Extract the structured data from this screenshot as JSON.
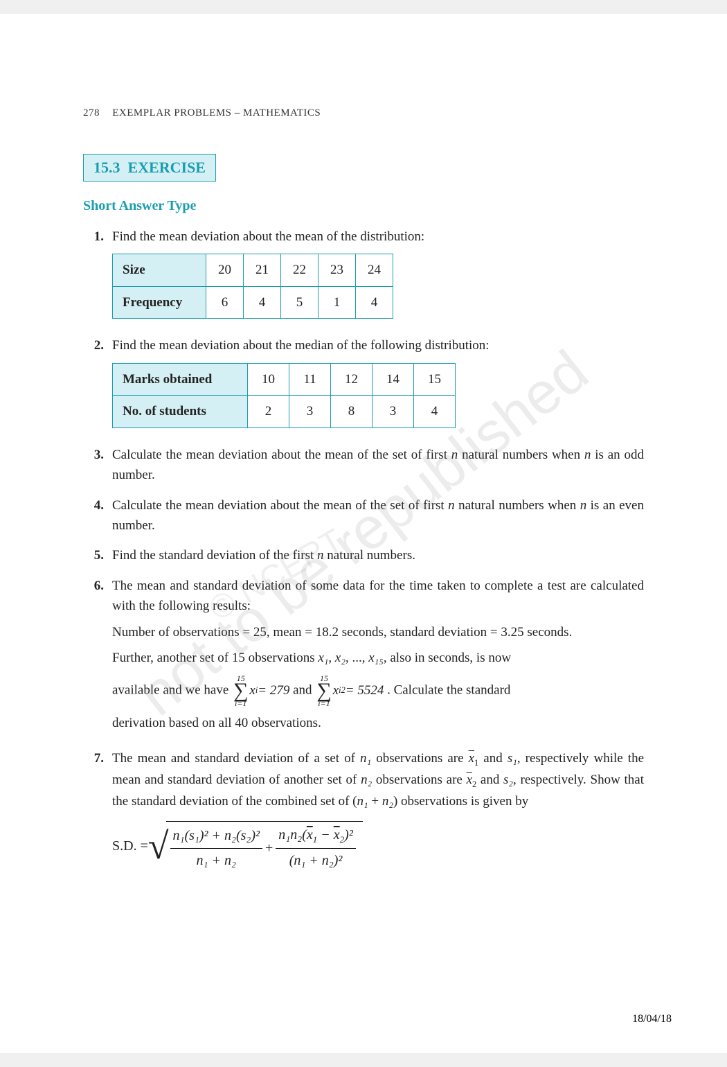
{
  "header": {
    "page_number": "278",
    "title": "EXEMPLAR PROBLEMS – MATHEMATICS"
  },
  "section": {
    "number": "15.3",
    "label": "EXERCISE"
  },
  "subtitle": "Short Answer Type",
  "watermarks": {
    "main": "not to be republished",
    "secondary": "© NCERT"
  },
  "q1": {
    "num": "1.",
    "text": "Find the mean deviation about the mean of the distribution:",
    "table": {
      "rows": [
        {
          "label": "Size",
          "vals": [
            "20",
            "21",
            "22",
            "23",
            "24"
          ]
        },
        {
          "label": "Frequency",
          "vals": [
            "6",
            "4",
            "5",
            "1",
            "4"
          ]
        }
      ]
    }
  },
  "q2": {
    "num": "2.",
    "text": "Find the mean deviation about the median of the following distribution:",
    "table": {
      "rows": [
        {
          "label": "Marks obtained",
          "vals": [
            "10",
            "11",
            "12",
            "14",
            "15"
          ]
        },
        {
          "label": "No. of students",
          "vals": [
            "2",
            "3",
            "8",
            "3",
            "4"
          ]
        }
      ]
    }
  },
  "q3": {
    "num": "3.",
    "text_a": "Calculate the mean deviation about the mean of the set of first ",
    "text_b": " natural numbers when ",
    "text_c": " is an odd number."
  },
  "q4": {
    "num": "4.",
    "text_a": "Calculate the mean deviation about the mean of the set of first ",
    "text_b": " natural numbers when ",
    "text_c": " is an even number."
  },
  "q5": {
    "num": "5.",
    "text_a": "Find the standard deviation of the first ",
    "text_b": " natural numbers."
  },
  "q6": {
    "num": "6.",
    "p1": "The mean and standard deviation of some data for the time taken to complete a test are calculated with the following results:",
    "p2": "Number of observations = 25, mean = 18.2 seconds, standard deviation = 3.25 seconds.",
    "p3a": "Further, another set of 15 observations ",
    "p3b": ", also in seconds, is now",
    "p4a": "available and we have ",
    "p4_and": " and  ",
    "p4b": ". Calculate the standard",
    "p5": "derivation based on all 40  observations.",
    "sum1_top": "15",
    "sum1_bot": "i=1",
    "sum1_expr_left": "x",
    "sum1_expr_sub": "i",
    "sum1_eq": " = 279",
    "sum2_top": "15",
    "sum2_bot": "i=1",
    "sum2_expr_left": "x",
    "sum2_expr_sub": "i",
    "sum2_expr_sup": "2",
    "sum2_eq": " = 5524"
  },
  "q7": {
    "num": "7.",
    "p1a": "The mean and standard deviation of a set of ",
    "p1b": " observations are  ",
    "p1c": "  and ",
    "p1d": ", respectively while the mean and standard deviation of another set of ",
    "p1e": " observations are  ",
    "p1f": "  and ",
    "p1g": ", respectively. Show that the standard deviation of the combined set of (",
    "p1h": " + ",
    "p1i": ") observations is given by",
    "sd_label": "S.D. = ",
    "frac1_num": "n₁(s₁)² + n₂(s₂)²",
    "frac1_den": "n₁ + n₂",
    "plus": " + ",
    "frac2_num_a": "n₁n₂(",
    "frac2_num_b": " − ",
    "frac2_num_c": ")²",
    "frac2_den": "(n₁ + n₂)²"
  },
  "vars": {
    "n": "n",
    "n1": "n₁",
    "n2": "n₂",
    "x1": "x₁",
    "x2": "x₂",
    "x15": "x₁₅",
    "xbar1": "x",
    "xbar2": "x",
    "s1": "s₁",
    "s2": "s₂"
  },
  "footer_date": "18/04/18"
}
